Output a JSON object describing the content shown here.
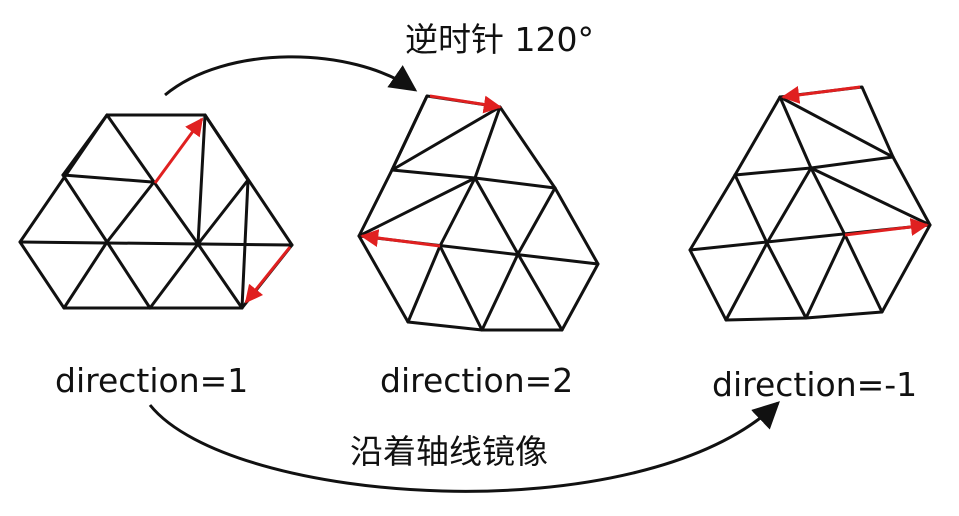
{
  "captions": {
    "top": "逆时针 120°",
    "bottom": "沿着轴线镜像"
  },
  "panels": [
    {
      "label": "direction=1"
    },
    {
      "label": "direction=2"
    },
    {
      "label": "direction=-1"
    }
  ],
  "colors": {
    "line": "#111111",
    "highlight": "#e02020",
    "background": "#ffffff"
  }
}
